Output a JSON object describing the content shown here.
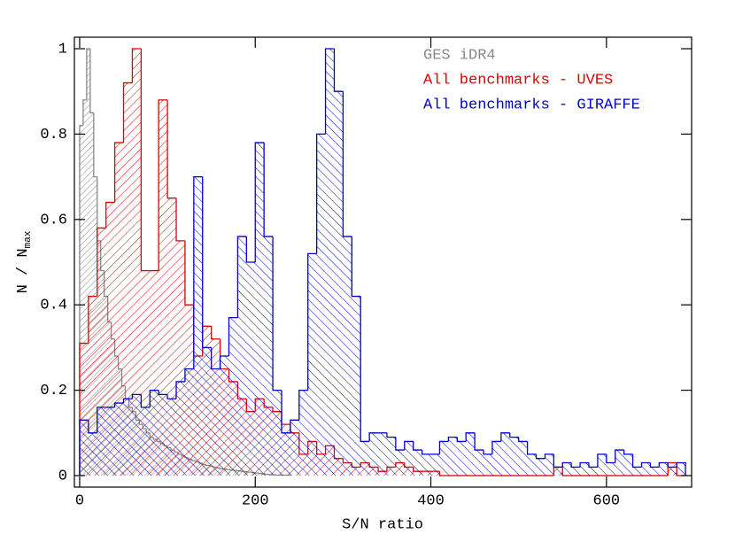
{
  "chart_data": {
    "type": "histogram",
    "xlabel": "S/N ratio",
    "ylabel": "N / N",
    "ylabel_subscript": "max",
    "xlim": [
      -6,
      697
    ],
    "ylim": [
      -0.027,
      1.027
    ],
    "xticks": [
      0,
      200,
      400,
      600
    ],
    "yticks": [
      0,
      0.2,
      0.4,
      0.6,
      0.8,
      1
    ],
    "series": [
      {
        "name": "GES iDR4",
        "color": "#888888",
        "bins": [
          0,
          4,
          8,
          12,
          16,
          20,
          24,
          28,
          32,
          36,
          40,
          44,
          48,
          52,
          56,
          60,
          64,
          68,
          72,
          76,
          80,
          84,
          88,
          92,
          96,
          100,
          104,
          108,
          112,
          116,
          120,
          124,
          128,
          132,
          136,
          140,
          144,
          148,
          152,
          156,
          160,
          164,
          168,
          172,
          176,
          180,
          184,
          188,
          192,
          196,
          200,
          204,
          208,
          212,
          216,
          220,
          224,
          228,
          232,
          236,
          240
        ],
        "values": [
          0.82,
          0.88,
          1.0,
          0.85,
          0.7,
          0.55,
          0.48,
          0.42,
          0.36,
          0.32,
          0.28,
          0.25,
          0.21,
          0.18,
          0.16,
          0.15,
          0.13,
          0.12,
          0.11,
          0.1,
          0.09,
          0.085,
          0.08,
          0.075,
          0.07,
          0.065,
          0.06,
          0.055,
          0.05,
          0.046,
          0.042,
          0.038,
          0.035,
          0.032,
          0.029,
          0.026,
          0.024,
          0.022,
          0.02,
          0.018,
          0.016,
          0.015,
          0.014,
          0.013,
          0.012,
          0.011,
          0.01,
          0.009,
          0.008,
          0.007,
          0.006,
          0.005,
          0.004,
          0.003,
          0.002,
          0.002,
          0.001,
          0.001,
          0.001,
          0.001
        ]
      },
      {
        "name": "All benchmarks - UVES",
        "color": "#e00000",
        "bins": [
          0,
          10,
          20,
          30,
          40,
          50,
          60,
          70,
          80,
          90,
          100,
          110,
          120,
          130,
          140,
          150,
          160,
          170,
          180,
          190,
          200,
          210,
          220,
          230,
          240,
          250,
          260,
          270,
          280,
          290,
          300,
          310,
          320,
          330,
          340,
          350,
          360,
          370,
          380,
          390,
          400,
          410,
          420,
          430,
          440,
          450,
          460,
          470,
          480,
          490,
          500,
          510,
          520,
          530,
          540,
          550,
          560,
          570,
          580,
          590,
          600,
          610,
          620,
          630,
          640,
          650,
          660,
          670,
          680,
          690
        ],
        "values": [
          0.31,
          0.42,
          0.58,
          0.64,
          0.78,
          0.92,
          1.0,
          0.48,
          0.48,
          0.88,
          0.65,
          0.55,
          0.4,
          0.28,
          0.35,
          0.32,
          0.25,
          0.22,
          0.18,
          0.15,
          0.18,
          0.16,
          0.15,
          0.12,
          0.1,
          0.05,
          0.08,
          0.05,
          0.07,
          0.04,
          0.03,
          0.02,
          0.03,
          0.02,
          0.01,
          0.02,
          0.03,
          0.02,
          0.01,
          0.01,
          0.01,
          0,
          0,
          0,
          0,
          0,
          0,
          0,
          0,
          0,
          0,
          0,
          0,
          0,
          0.02,
          0,
          0,
          0,
          0,
          0,
          0,
          0,
          0,
          0,
          0,
          0,
          0,
          0.03,
          0
        ]
      },
      {
        "name": "All benchmarks - GIRAFFE",
        "color": "#0000cc",
        "bins": [
          0,
          10,
          20,
          30,
          40,
          50,
          60,
          70,
          80,
          90,
          100,
          110,
          120,
          130,
          140,
          150,
          160,
          170,
          180,
          190,
          200,
          210,
          220,
          230,
          240,
          250,
          260,
          270,
          280,
          290,
          300,
          310,
          320,
          330,
          340,
          350,
          360,
          370,
          380,
          390,
          400,
          410,
          420,
          430,
          440,
          450,
          460,
          470,
          480,
          490,
          500,
          510,
          520,
          530,
          540,
          550,
          560,
          570,
          580,
          590,
          600,
          610,
          620,
          630,
          640,
          650,
          660,
          670,
          680,
          690
        ],
        "values": [
          0.13,
          0.1,
          0.16,
          0.16,
          0.17,
          0.18,
          0.19,
          0.16,
          0.2,
          0.19,
          0.18,
          0.22,
          0.25,
          0.7,
          0.3,
          0.25,
          0.28,
          0.37,
          0.56,
          0.5,
          0.78,
          0.56,
          0.2,
          0.1,
          0.13,
          0.2,
          0.52,
          0.8,
          1.0,
          0.9,
          0.56,
          0.42,
          0.08,
          0.1,
          0.1,
          0.09,
          0.06,
          0.08,
          0.06,
          0.05,
          0.05,
          0.08,
          0.09,
          0.08,
          0.1,
          0.06,
          0.05,
          0.08,
          0.1,
          0.09,
          0.08,
          0.05,
          0.04,
          0.05,
          0.02,
          0.03,
          0.02,
          0.03,
          0.02,
          0.05,
          0.03,
          0.06,
          0.05,
          0.02,
          0.03,
          0.02,
          0.03,
          0.02,
          0.03
        ]
      }
    ]
  }
}
